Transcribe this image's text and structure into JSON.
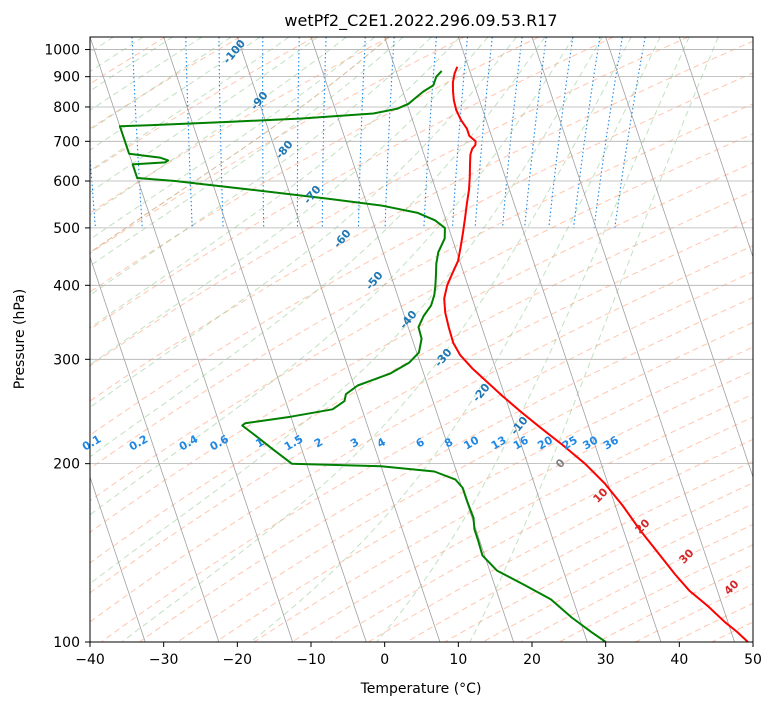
{
  "chart_data": {
    "type": "line",
    "subtype": "skew-T log-P diagram",
    "title": "wetPf2_C2E1.2022.296.09.53.R17",
    "xlabel": "Temperature (°C)",
    "ylabel": "Pressure (hPa)",
    "xlim": [
      -40,
      50
    ],
    "ylim": [
      1050,
      100
    ],
    "y_scale": "log",
    "grid": true,
    "x_ticks": [
      -40,
      -30,
      -20,
      -10,
      0,
      10,
      20,
      30,
      40,
      50
    ],
    "y_ticks": [
      100,
      200,
      300,
      400,
      500,
      600,
      700,
      800,
      900,
      1000
    ],
    "series": [
      {
        "color": "#ff0000",
        "points": [
          [
            8.5,
            935
          ],
          [
            7.8,
            910
          ],
          [
            7.2,
            880
          ],
          [
            6.8,
            850
          ],
          [
            6.5,
            820
          ],
          [
            6.4,
            790
          ],
          [
            6.6,
            760
          ],
          [
            7.0,
            735
          ],
          [
            7.0,
            715
          ],
          [
            7.6,
            700
          ],
          [
            7.4,
            690
          ],
          [
            6.8,
            680
          ],
          [
            6.3,
            665
          ],
          [
            5.8,
            640
          ],
          [
            5.2,
            610
          ],
          [
            4.5,
            580
          ],
          [
            3.6,
            550
          ],
          [
            2.7,
            520
          ],
          [
            1.7,
            490
          ],
          [
            0.8,
            465
          ],
          [
            -0.2,
            440
          ],
          [
            -1.5,
            420
          ],
          [
            -2.8,
            400
          ],
          [
            -3.8,
            380
          ],
          [
            -4.3,
            360
          ],
          [
            -4.5,
            340
          ],
          [
            -4.6,
            320
          ],
          [
            -4.2,
            305
          ],
          [
            -3.2,
            290
          ],
          [
            -1.8,
            275
          ],
          [
            -0.3,
            260
          ],
          [
            1.4,
            245
          ],
          [
            3.4,
            230
          ],
          [
            5.6,
            215
          ],
          [
            7.8,
            200
          ],
          [
            9.6,
            185
          ],
          [
            11.0,
            170
          ],
          [
            12.2,
            155
          ],
          [
            13.6,
            142
          ],
          [
            15.0,
            130
          ],
          [
            16.2,
            122
          ],
          [
            18.0,
            115
          ],
          [
            19.6,
            108
          ],
          [
            20.8,
            104
          ],
          [
            21.8,
            100
          ]
        ]
      },
      {
        "color": "#008000",
        "points": [
          [
            6.2,
            920
          ],
          [
            5.2,
            900
          ],
          [
            4.4,
            870
          ],
          [
            2.8,
            850
          ],
          [
            1.5,
            830
          ],
          [
            0.2,
            810
          ],
          [
            -1.5,
            795
          ],
          [
            -5,
            780
          ],
          [
            -15,
            765
          ],
          [
            -25,
            755
          ],
          [
            -36,
            745
          ],
          [
            -40,
            742
          ],
          [
            -40,
            667
          ],
          [
            -36,
            657
          ],
          [
            -35,
            650
          ],
          [
            -35.5,
            645
          ],
          [
            -40,
            640
          ],
          [
            -40,
            607
          ],
          [
            -35,
            600
          ],
          [
            -25,
            580
          ],
          [
            -15,
            560
          ],
          [
            -8,
            545
          ],
          [
            -3.5,
            530
          ],
          [
            -1.5,
            515
          ],
          [
            -0.5,
            500
          ],
          [
            -1,
            480
          ],
          [
            -2.5,
            455
          ],
          [
            -3.3,
            435
          ],
          [
            -3.8,
            418
          ],
          [
            -4.4,
            400
          ],
          [
            -5,
            385
          ],
          [
            -5.9,
            370
          ],
          [
            -7.4,
            355
          ],
          [
            -8.6,
            340
          ],
          [
            -8.7,
            325
          ],
          [
            -9.7,
            308
          ],
          [
            -11.5,
            296
          ],
          [
            -14.5,
            284
          ],
          [
            -19.5,
            271
          ],
          [
            -21.5,
            262
          ],
          [
            -22.0,
            255
          ],
          [
            -24.0,
            247
          ],
          [
            -30.0,
            240
          ],
          [
            -36.5,
            234
          ],
          [
            -37.0,
            232
          ],
          [
            -35.5,
            222
          ],
          [
            -34,
            212
          ],
          [
            -32,
            200
          ],
          [
            -20,
            198
          ],
          [
            -13,
            194
          ],
          [
            -10.5,
            188
          ],
          [
            -9.9,
            182
          ],
          [
            -9.9,
            172
          ],
          [
            -9.8,
            162
          ],
          [
            -10.2,
            155
          ],
          [
            -10.2,
            148
          ],
          [
            -10.3,
            140
          ],
          [
            -9.0,
            132
          ],
          [
            -6.0,
            125
          ],
          [
            -3.0,
            118
          ],
          [
            -1.0,
            110
          ],
          [
            1.0,
            104
          ],
          [
            2.5,
            100
          ]
        ]
      }
    ],
    "dry_adiabat_labels": [
      "-100",
      "-90",
      "-80",
      "-70",
      "-60",
      "-50",
      "-40",
      "-30",
      "-20",
      "-10"
    ],
    "moist_adiabat_labels": [
      "0",
      "10",
      "20",
      "30",
      "40"
    ],
    "mixing_ratio_labels": [
      "0.1",
      "0.2",
      "0.4",
      "0.6",
      "1",
      "1.5",
      "2",
      "3",
      "4",
      "6",
      "8",
      "10",
      "13",
      "16",
      "20",
      "25",
      "30",
      "36"
    ],
    "colors": {
      "temperature": "#ff0000",
      "dewpoint": "#008000",
      "isotherm": "#a0a0a0",
      "dry_adiabat": "#ffa07a",
      "moist_adiabat": "#90c890",
      "mixing_ratio": "#1e88e5",
      "freezing_level_moist": "#d2b48c"
    }
  }
}
